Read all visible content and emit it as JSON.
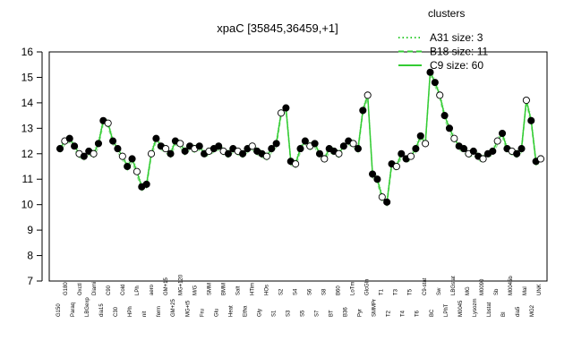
{
  "chart_data": {
    "type": "line",
    "title": "xpaC [35845,36459,+1]",
    "xlabel": "",
    "ylabel": "",
    "ylim": [
      7,
      16
    ],
    "yticks": [
      7,
      8,
      9,
      10,
      11,
      12,
      13,
      14,
      15,
      16
    ],
    "legend": {
      "title": "clusters",
      "position": "top-right",
      "entries": [
        {
          "label": "A31 size: 3",
          "style": "dotted",
          "color": "#33cc33"
        },
        {
          "label": "B18 size: 11",
          "style": "dashed",
          "color": "#33cc33"
        },
        {
          "label": "C9 size: 60",
          "style": "solid",
          "color": "#33cc33"
        }
      ]
    },
    "tick_labels_top": [
      "G150",
      "G180",
      "Paraq",
      "Oxctl",
      "LBGexp",
      "Diami",
      "dia15",
      "C90",
      "C30",
      "Cold",
      "HPh",
      "LPh",
      "nit",
      "aero",
      "ferm",
      "GM+15",
      "GM+25",
      "MG+120",
      "MG+t5",
      "M/G",
      "Fru",
      "SMM",
      "Glu",
      "BMM",
      "Heat",
      "Salt",
      "Etha",
      "HTim",
      "Gly",
      "HOs",
      "S1",
      "S2",
      "S3",
      "S4",
      "S5",
      "S6",
      "S7",
      "S8",
      "BT",
      "B60",
      "B36",
      "LoTm",
      "Pyr",
      "GlcGln",
      "SMMPr",
      "T1",
      "T2",
      "T3",
      "T4",
      "T5",
      "T6",
      "C9-stat",
      "BC",
      "Sw",
      "LPhT",
      "LBGstat",
      "M0045",
      "MG",
      "Lysozm",
      "M0090",
      "Lbstat",
      "Sb",
      "BI",
      "M0045b",
      "dia5",
      "Mal",
      "MG2",
      "UNK"
    ],
    "series": [
      {
        "name": "",
        "values": [
          12.2,
          12.5,
          12.6,
          12.3,
          12.0,
          11.9,
          12.1,
          12.0,
          12.4,
          13.3,
          13.2,
          12.5,
          12.2,
          11.9,
          11.5,
          11.8,
          11.3,
          10.7,
          10.8,
          12.0,
          12.6,
          12.3,
          12.2,
          12.0,
          12.5,
          12.4,
          12.1,
          12.3,
          12.2,
          12.3,
          12.0,
          12.1,
          12.2,
          12.3,
          12.1,
          12.0,
          12.2,
          12.1,
          12.0,
          12.2,
          12.3,
          12.1,
          12.0,
          11.9,
          12.2,
          12.4,
          13.6,
          13.8,
          11.7,
          11.6,
          12.2,
          12.5,
          12.3,
          12.4,
          12.0,
          11.8,
          12.2,
          12.1,
          12.0,
          12.3,
          12.5,
          12.4,
          12.2,
          13.7,
          14.3,
          11.2,
          11.0,
          10.3,
          10.1,
          11.6,
          11.5,
          12.0,
          11.8,
          11.9,
          12.2,
          12.7,
          12.4,
          15.2,
          14.8,
          14.3,
          13.5,
          13.0,
          12.6,
          12.3,
          12.2,
          12.0,
          12.1,
          11.9,
          11.8,
          12.0,
          12.1,
          12.5,
          12.8,
          12.2,
          12.1,
          12.0,
          12.2,
          14.1,
          13.3,
          11.7,
          11.8
        ]
      }
    ]
  }
}
